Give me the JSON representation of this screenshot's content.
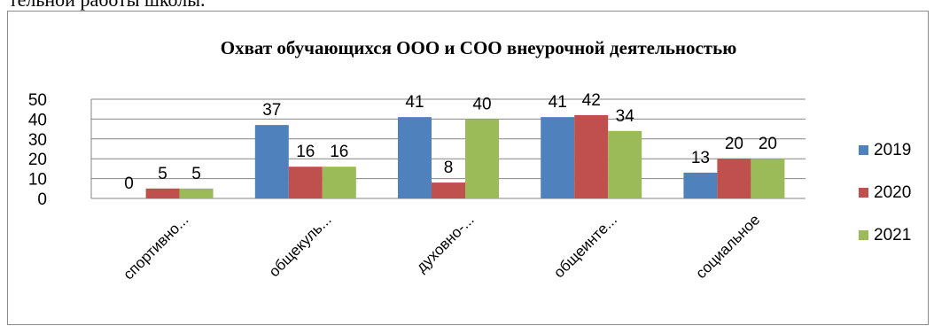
{
  "page": {
    "top_text": "тельной работы школы."
  },
  "chart_data": {
    "type": "bar",
    "title": "Охват обучающихся  ООО и СОО внеурочной деятельностью",
    "categories": [
      "спортивно...",
      "общекуль...",
      "духовно-...",
      "общеинте...",
      "социальное"
    ],
    "series": [
      {
        "name": "2019",
        "color": "#4f81bd",
        "values": [
          0,
          37,
          41,
          41,
          13
        ]
      },
      {
        "name": "2020",
        "color": "#c0504d",
        "values": [
          5,
          16,
          8,
          42,
          20
        ]
      },
      {
        "name": "2021",
        "color": "#9bbb59",
        "values": [
          5,
          16,
          40,
          34,
          20
        ]
      }
    ],
    "yticks": [
      0,
      10,
      20,
      30,
      40,
      50
    ],
    "ylim": [
      0,
      50
    ],
    "grid": true,
    "legend": "right",
    "data_labels": true
  }
}
